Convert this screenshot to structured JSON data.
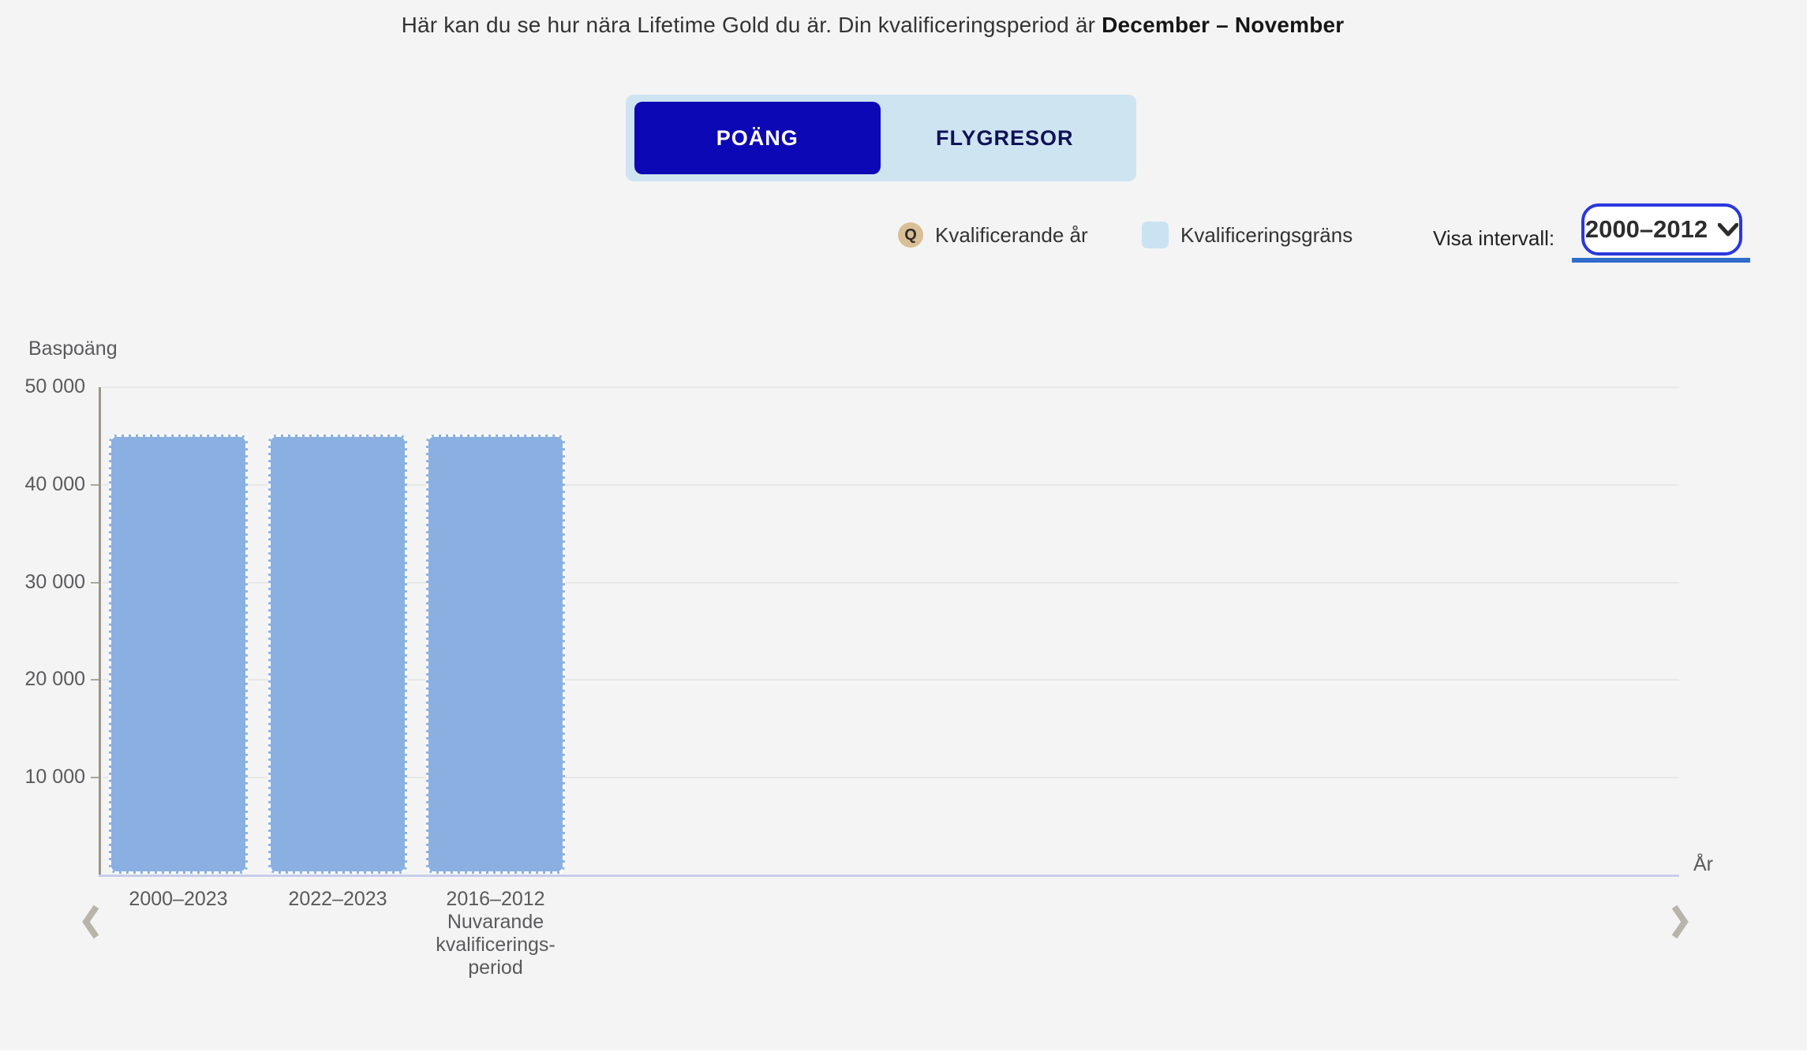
{
  "header": {
    "intro": "Här kan du se hur nära Lifetime Gold du är. Din kvalificeringsperiod är ",
    "period": "December – November"
  },
  "tabs": [
    {
      "label": "POÄNG",
      "active": true
    },
    {
      "label": "FLYGRESOR",
      "active": false
    }
  ],
  "legend": {
    "q_letter": "Q",
    "items": [
      {
        "icon": "q-badge-icon",
        "label": "Kvalificerande år"
      },
      {
        "icon": "threshold-swatch-icon",
        "label": "Kvalificeringsgräns"
      }
    ]
  },
  "interval": {
    "label": "Visa intervall:",
    "value": "2000–2012"
  },
  "icons": {
    "prev": "chevron-left-icon",
    "next": "chevron-right-icon",
    "dropdown": "chevron-down-icon"
  },
  "colors": {
    "page_bg": "#f4f4f5",
    "tab_active_bg": "#0d08b5",
    "tab_container_bg": "#cfe4f1",
    "tab_inactive_text": "#0e1257",
    "bar_fill": "#8ab0e2",
    "bar_border": "#ffffff",
    "q_badge_bg": "#d9bf95",
    "legend_swatch": "#c9e3f3",
    "select_ring": "#2a37dd",
    "select_underline": "#2f6ccb",
    "axis_line": "#9a958b",
    "baseline": "#c7cee9",
    "gridline": "#e8e8e6",
    "chart_text": "#5a5a5c"
  },
  "chart_data": {
    "type": "bar",
    "title": "",
    "y_axis_title": "Baspoäng",
    "x_axis_title": "År",
    "ylim": [
      0,
      50000
    ],
    "grid": true,
    "legend_position": "top-right",
    "y_ticks": [
      {
        "value": 50000,
        "label": "50 000"
      },
      {
        "value": 40000,
        "label": "40 000"
      },
      {
        "value": 30000,
        "label": "30 000"
      },
      {
        "value": 20000,
        "label": "20 000"
      },
      {
        "value": 10000,
        "label": "10 000"
      }
    ],
    "categories": [
      [
        "2000–2023"
      ],
      [
        "2022–2023"
      ],
      [
        "2016–2012",
        "Nuvarande",
        "kvalificerings-",
        "period"
      ]
    ],
    "series": [
      {
        "name": "Kvalificeringsgräns",
        "values": [
          45000,
          45000,
          45000
        ],
        "color": "#8ab0e2"
      }
    ]
  }
}
